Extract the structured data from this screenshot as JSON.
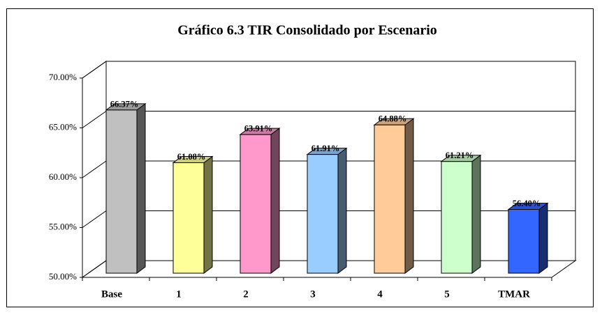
{
  "chart_data": {
    "type": "bar3d",
    "title": "Gráfico 6.3  TIR Consolidado por Escenario",
    "categories": [
      "Base",
      "1",
      "2",
      "3",
      "4",
      "5",
      "TMAR"
    ],
    "values": [
      66.37,
      61.08,
      63.91,
      61.91,
      64.88,
      61.21,
      56.4
    ],
    "value_labels": [
      "66.37%",
      "61.08%",
      "63.91%",
      "61.91%",
      "64.88%",
      "61.21%",
      "56.40%"
    ],
    "colors": [
      "#c0c0c0",
      "#ffff99",
      "#ff99cc",
      "#99ccff",
      "#ffcc99",
      "#ccffcc",
      "#3366ff"
    ],
    "ylim": [
      50,
      70
    ],
    "yticks": [
      {
        "value": 50,
        "label": "50.00%"
      },
      {
        "value": 55,
        "label": "55.00%"
      },
      {
        "value": 60,
        "label": "60.00%"
      },
      {
        "value": 65,
        "label": "65.00%"
      },
      {
        "value": 70,
        "label": "70.00%"
      }
    ],
    "grid": true
  }
}
